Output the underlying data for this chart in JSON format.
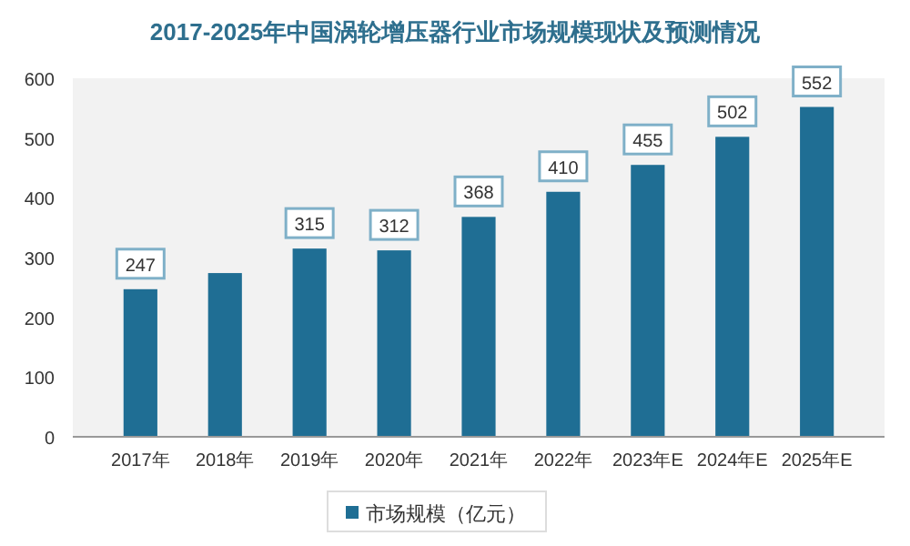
{
  "chart_data": {
    "type": "bar",
    "title": "2017-2025年中国涡轮增压器行业市场规模现状及预测情况",
    "categories": [
      "2017年",
      "2018年",
      "2019年",
      "2020年",
      "2021年",
      "2022年",
      "2023年E",
      "2024年E",
      "2025年E"
    ],
    "series": [
      {
        "name": "市场规模（亿元）",
        "color": "#1f6e94",
        "values": [
          247,
          274,
          315,
          312,
          368,
          410,
          455,
          502,
          552
        ],
        "value_labels": [
          "247",
          null,
          "315",
          "312",
          "368",
          "410",
          "455",
          "502",
          "552"
        ]
      }
    ],
    "ylim": [
      0,
      600
    ],
    "yticks": [
      0,
      100,
      200,
      300,
      400,
      500,
      600
    ],
    "legend": "bottom"
  }
}
